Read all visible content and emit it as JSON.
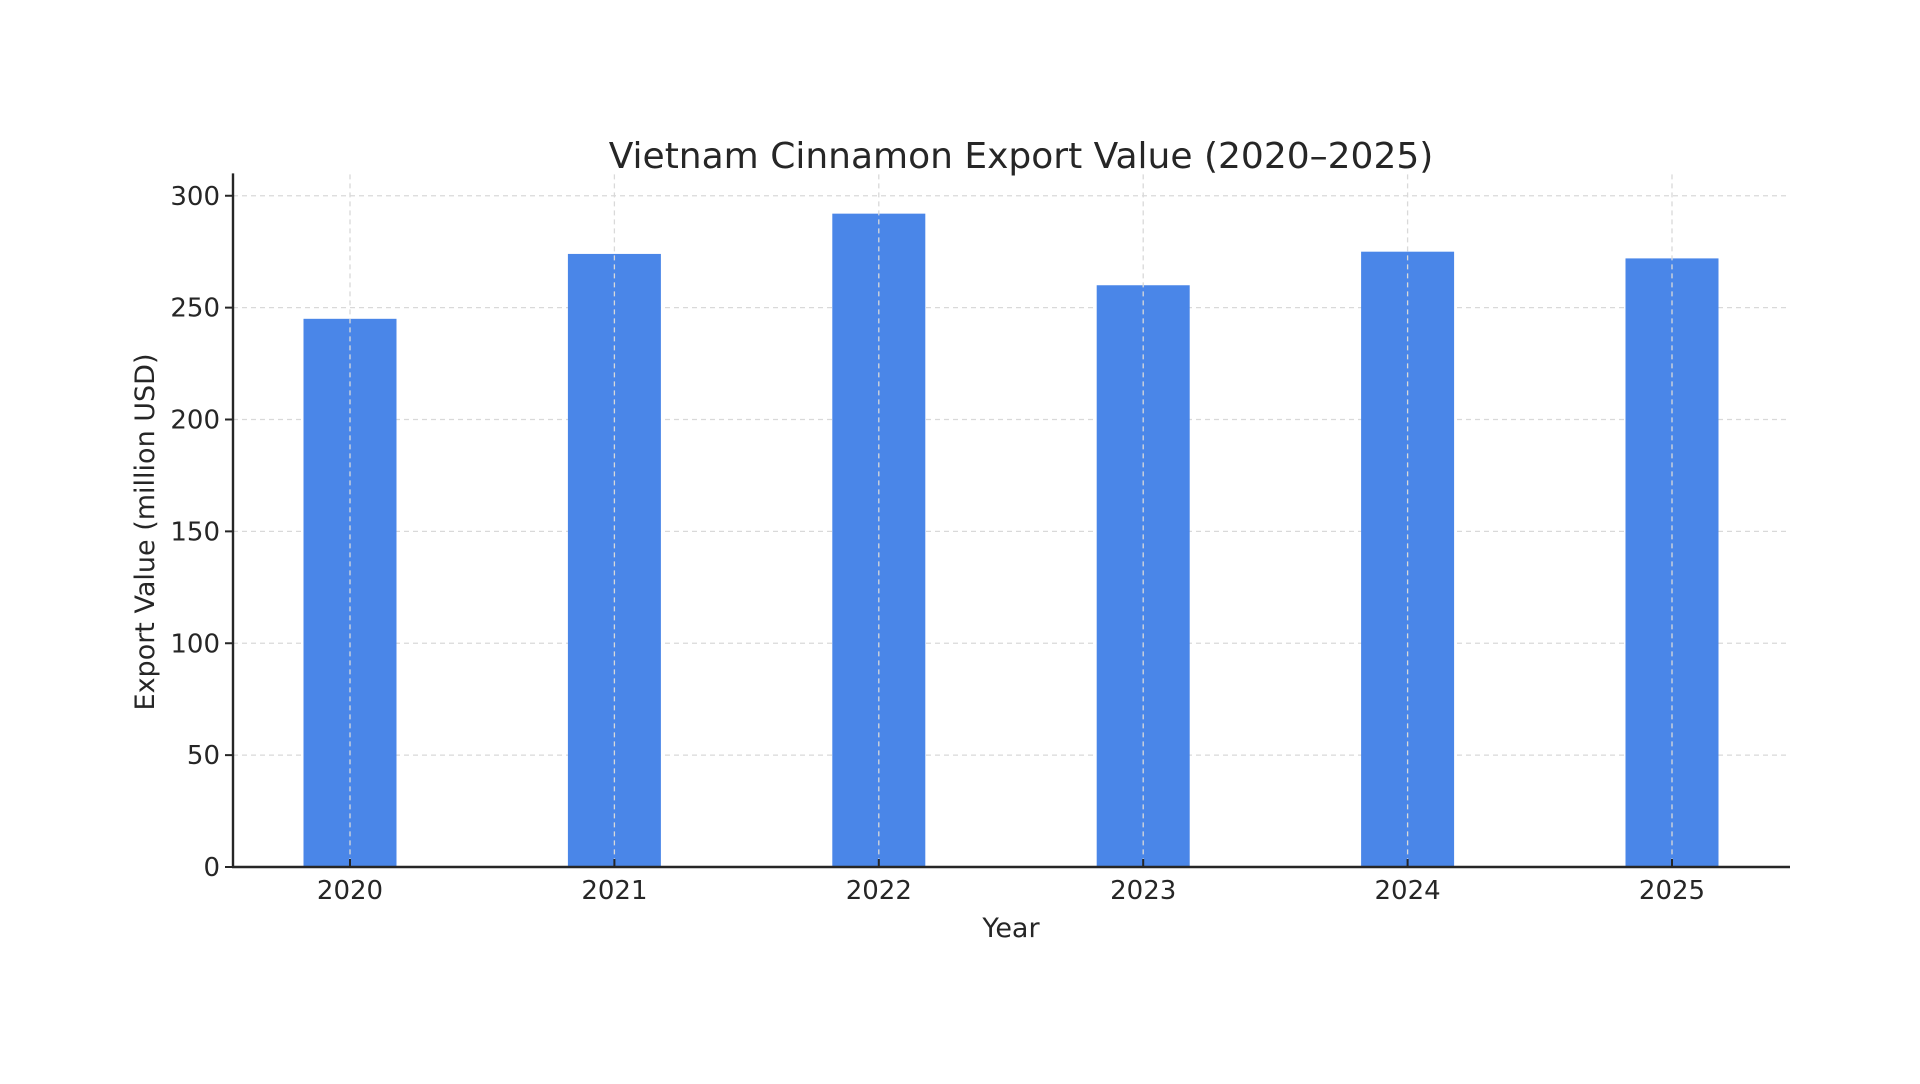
{
  "chart_data": {
    "type": "bar",
    "title": "Vietnam Cinnamon Export Value (2020–2025)",
    "xlabel": "Year",
    "ylabel": "Export Value (million USD)",
    "categories": [
      "2020",
      "2021",
      "2022",
      "2023",
      "2024",
      "2025"
    ],
    "values": [
      245,
      274,
      292,
      260,
      275,
      272
    ],
    "ylim": [
      0,
      306
    ],
    "yticks": [
      0,
      50,
      100,
      150,
      200,
      250,
      300
    ],
    "grid": true,
    "grid_style": "dashed",
    "legend": null,
    "bar_color": "#4A86E8"
  },
  "colors": {
    "bar": "#4A86E8",
    "grid": "#d9d9d9",
    "axis": "#262626",
    "text": "#262626",
    "background": "#ffffff"
  }
}
